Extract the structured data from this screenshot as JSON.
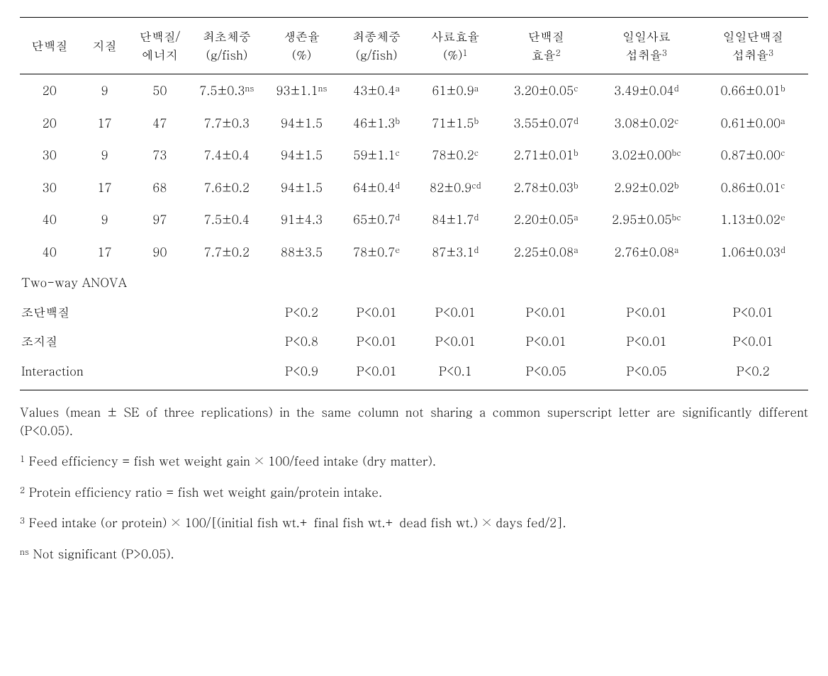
{
  "headers": [
    {
      "line1": "단백질",
      "line2": ""
    },
    {
      "line1": "지질",
      "line2": ""
    },
    {
      "line1": "단백질/",
      "line2": "에너지"
    },
    {
      "line1": "최초체중",
      "line2": "(g/fish)"
    },
    {
      "line1": "생존율",
      "line2": "(%)"
    },
    {
      "line1": "최종체중",
      "line2": "(g/fish)"
    },
    {
      "line1": "사료효율",
      "line2": "(%)",
      "sup": "1"
    },
    {
      "line1": "단백질",
      "line2": "효율",
      "sup": "2"
    },
    {
      "line1": "일일사료",
      "line2": "섭취율",
      "sup": "3"
    },
    {
      "line1": "일일단백질",
      "line2": "섭취율",
      "sup": "3"
    }
  ],
  "rows": [
    {
      "protein": "20",
      "lipid": "9",
      "pe": "50",
      "iw": {
        "v": "7.5±0.3",
        "s": "ns"
      },
      "sv": {
        "v": "93±1.1",
        "s": "ns"
      },
      "fw": {
        "v": "43±0.4",
        "s": "a"
      },
      "fe": {
        "v": "61±0.9",
        "s": "a"
      },
      "per": {
        "v": "3.20±0.05",
        "s": "c"
      },
      "dfi": {
        "v": "3.49±0.04",
        "s": "d"
      },
      "dpi": {
        "v": "0.66±0.01",
        "s": "b"
      }
    },
    {
      "protein": "20",
      "lipid": "17",
      "pe": "47",
      "iw": {
        "v": "7.7±0.3",
        "s": ""
      },
      "sv": {
        "v": "94±1.5",
        "s": ""
      },
      "fw": {
        "v": "46±1.3",
        "s": "b"
      },
      "fe": {
        "v": "71±1.5",
        "s": "b"
      },
      "per": {
        "v": "3.55±0.07",
        "s": "d"
      },
      "dfi": {
        "v": "3.08±0.02",
        "s": "c"
      },
      "dpi": {
        "v": "0.61±0.00",
        "s": "a"
      }
    },
    {
      "protein": "30",
      "lipid": "9",
      "pe": "73",
      "iw": {
        "v": "7.4±0.4",
        "s": ""
      },
      "sv": {
        "v": "94±1.5",
        "s": ""
      },
      "fw": {
        "v": "59±1.1",
        "s": "c"
      },
      "fe": {
        "v": "78±0.2",
        "s": "c"
      },
      "per": {
        "v": "2.71±0.01",
        "s": "b"
      },
      "dfi": {
        "v": "3.02±0.00",
        "s": "bc"
      },
      "dpi": {
        "v": "0.87±0.00",
        "s": "c"
      }
    },
    {
      "protein": "30",
      "lipid": "17",
      "pe": "68",
      "iw": {
        "v": "7.6±0.2",
        "s": ""
      },
      "sv": {
        "v": "94±1.5",
        "s": ""
      },
      "fw": {
        "v": "64±0.4",
        "s": "d"
      },
      "fe": {
        "v": "82±0.9",
        "s": "cd"
      },
      "per": {
        "v": "2.78±0.03",
        "s": "b"
      },
      "dfi": {
        "v": "2.92±0.02",
        "s": "b"
      },
      "dpi": {
        "v": "0.86±0.01",
        "s": "c"
      }
    },
    {
      "protein": "40",
      "lipid": "9",
      "pe": "97",
      "iw": {
        "v": "7.5±0.4",
        "s": ""
      },
      "sv": {
        "v": "91±4.3",
        "s": ""
      },
      "fw": {
        "v": "65±0.7",
        "s": "d"
      },
      "fe": {
        "v": "84±1.7",
        "s": "d"
      },
      "per": {
        "v": "2.20±0.05",
        "s": "a"
      },
      "dfi": {
        "v": "2.95±0.05",
        "s": "bc"
      },
      "dpi": {
        "v": "1.13±0.02",
        "s": "e"
      }
    },
    {
      "protein": "40",
      "lipid": "17",
      "pe": "90",
      "iw": {
        "v": "7.7±0.2",
        "s": ""
      },
      "sv": {
        "v": "88±3.5",
        "s": ""
      },
      "fw": {
        "v": "78±0.7",
        "s": "e"
      },
      "fe": {
        "v": "87±3.1",
        "s": "d"
      },
      "per": {
        "v": "2.25±0.08",
        "s": "a"
      },
      "dfi": {
        "v": "2.76±0.08",
        "s": "a"
      },
      "dpi": {
        "v": "1.06±0.03",
        "s": "d"
      }
    }
  ],
  "anova_heading": "Two-way ANOVA",
  "anova": [
    {
      "label": "조단백질",
      "sv": "P<0.2",
      "fw": "P<0.01",
      "fe": "P<0.01",
      "per": "P<0.01",
      "dfi": "P<0.01",
      "dpi": "P<0.01"
    },
    {
      "label": "조지질",
      "sv": "P<0.8",
      "fw": "P<0.01",
      "fe": "P<0.01",
      "per": "P<0.01",
      "dfi": "P<0.01",
      "dpi": "P<0.01"
    },
    {
      "label": "Interaction",
      "sv": "P<0.9",
      "fw": "P<0.01",
      "fe": "P<0.1",
      "per": "P<0.05",
      "dfi": "P<0.05",
      "dpi": "P<0.2"
    }
  ],
  "footnotes": {
    "main": "Values (mean ± SE of three replications) in the same column not sharing a common superscript letter are significantly different (P<0.05).",
    "n1_sup": "1",
    "n1": " Feed efficiency = fish wet weight gain × 100/feed intake (dry matter).",
    "n2_sup": "2",
    "n2": " Protein efficiency ratio = fish wet weight gain/protein intake.",
    "n3_sup": "3",
    "n3": " Feed intake (or protein) × 100/[(initial fish wt.+ final fish wt.+ dead fish wt.) × days fed/2].",
    "ns_sup": "ns",
    "ns": " Not significant (P>0.05)."
  }
}
